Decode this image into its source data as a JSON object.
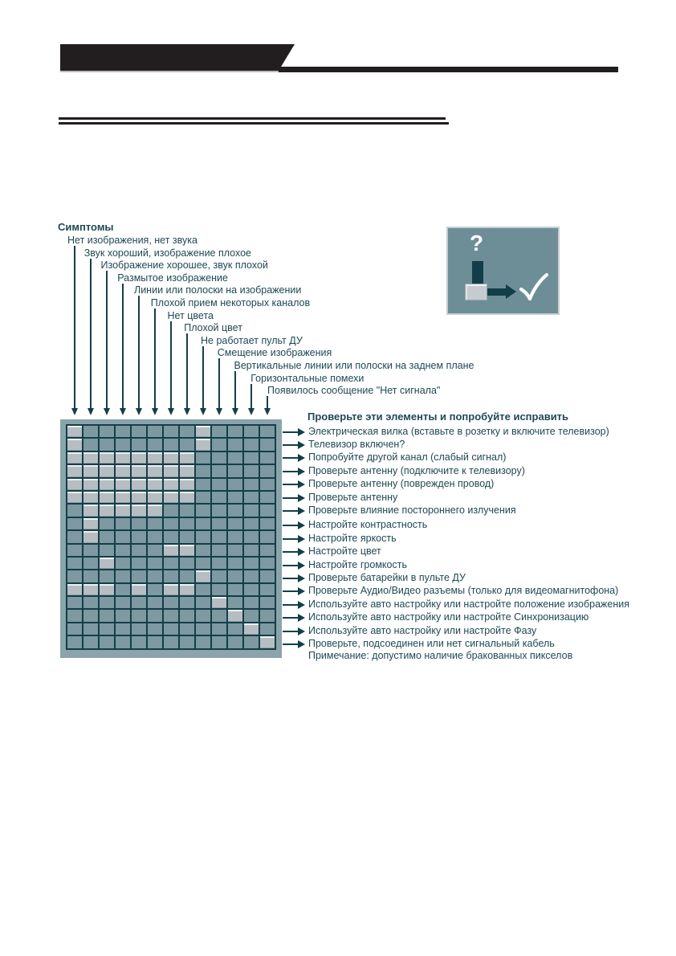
{
  "symptoms": {
    "heading": "Симптомы",
    "items": [
      "Нет изображения, нет звука",
      "Звук хороший, изображение плохое",
      "Изображение хорошее, звук плохой",
      "Размытое изображение",
      "Линии или полоски на изображении",
      "Плохой прием некоторых каналов",
      "Нет цвета",
      "Плохой цвет",
      "Не работает пульт ДУ",
      "Смещение изображения",
      "Вертикальные линии или полоски на заднем плане",
      "Горизонтальные помехи",
      "Появилось сообщение \"Нет сигнала\""
    ]
  },
  "remedies": {
    "heading": "Проверьте эти элементы и попробуйте исправить",
    "items": [
      "Электрическая вилка (вставьте в розетку и включите телевизор)",
      "Телевизор включен?",
      "Попробуйте другой канал (слабый сигнал)",
      "Проверьте антенну (подключите к телевизору)",
      "Проверьте антенну (поврежден провод)",
      "Проверьте антенну",
      "Проверьте влияние постороннего излучения",
      "Настройте контрастность",
      "Настройте яркость",
      "Настройте цвет",
      "Настройте громкость",
      "Проверьте батарейки в пульте ДУ",
      "Проверьте Аудио/Видео разъемы (только для видеомагнитофона)",
      "Используйте авто настройку или настройте положение изображения",
      "Используйте авто настройку или настройте Синхронизацию",
      "Используйте авто настройку или настройте Фазу",
      "Проверьте, подсоединен или нет сигнальный кабель"
    ],
    "note": "Примечание: допустимо наличие бракованных пикселов"
  },
  "matrix": {
    "rows": 17,
    "cols": 13,
    "divider_after_row": 7,
    "lit_cells_by_row": [
      [
        1,
        9
      ],
      [
        1,
        9
      ],
      [
        1,
        2,
        3,
        4,
        5,
        6,
        7,
        8
      ],
      [
        1,
        2,
        3,
        4,
        5,
        6,
        7,
        8
      ],
      [
        1,
        2,
        3,
        4,
        5,
        6,
        7,
        8
      ],
      [
        1,
        2,
        3,
        4,
        5,
        6,
        7,
        8
      ],
      [
        2,
        3,
        4,
        5,
        6
      ],
      [
        2
      ],
      [
        2
      ],
      [
        7,
        8
      ],
      [
        3
      ],
      [
        9
      ],
      [
        1,
        2,
        3,
        5,
        7,
        8
      ],
      [
        10
      ],
      [
        11
      ],
      [
        12
      ],
      [
        13
      ]
    ]
  },
  "legend": {
    "question_mark": "?",
    "checkmark_icon": "checkmark"
  },
  "colors": {
    "dark_teal": "#123f49",
    "text_teal": "#1e4953",
    "cell_off": "#7e99a1",
    "cell_on": "#b7bec3",
    "grid_band": "#8ba4ab",
    "legend_bg": "#6e8e97",
    "legend_border": "#c8ced2",
    "black": "#221e1f"
  }
}
